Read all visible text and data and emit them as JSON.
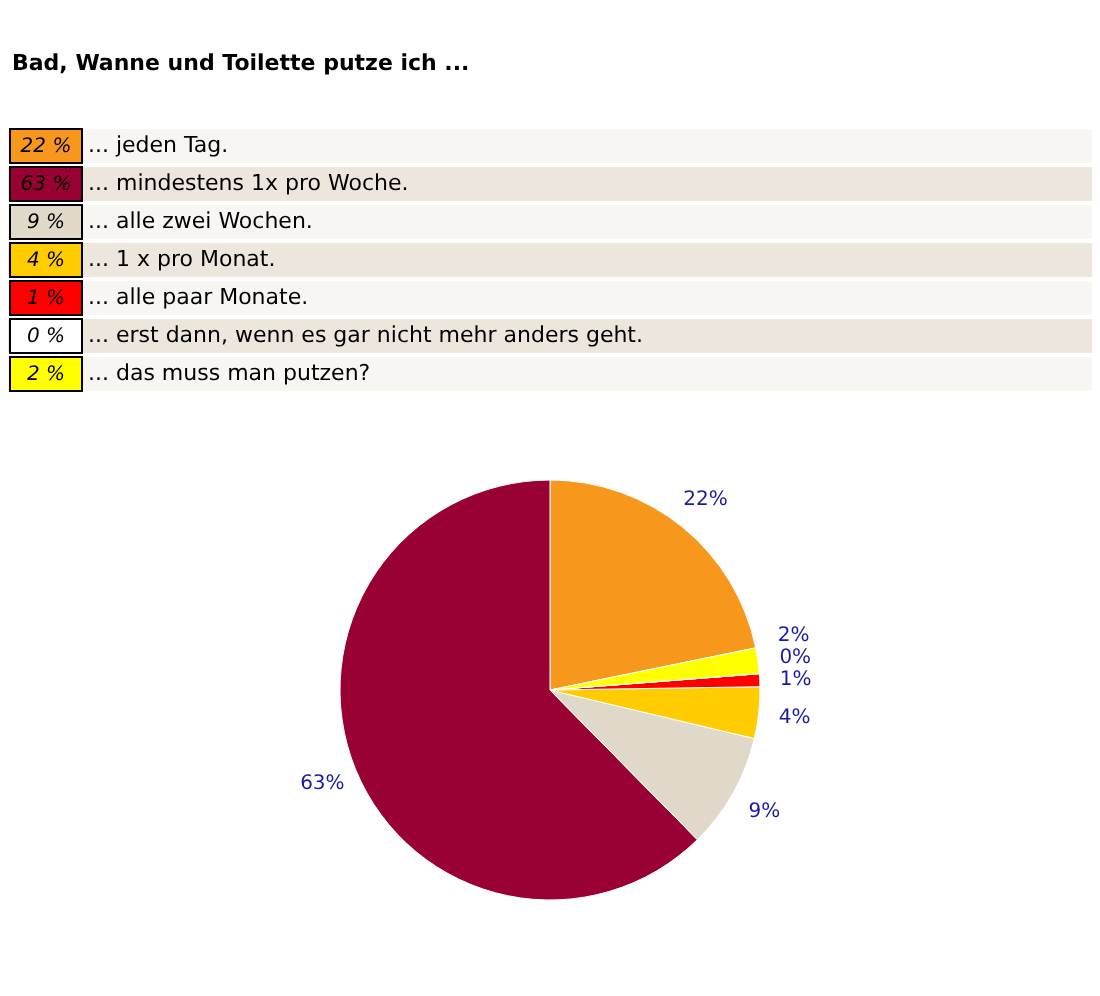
{
  "chart_data": {
    "type": "pie",
    "title": "Bad, Wanne und Toilette putze ich ...",
    "categories": [
      "... jeden Tag.",
      "... mindestens 1x pro Woche.",
      "... alle zwei Wochen.",
      "... 1 x pro Monat.",
      "... alle paar Monate.",
      "... erst dann, wenn es gar nicht mehr anders geht.",
      "... das muss man putzen?"
    ],
    "values": [
      22,
      63,
      9,
      4,
      1,
      0,
      2
    ],
    "colors": [
      "#f7981d",
      "#990033",
      "#e0d8c8",
      "#ffcc00",
      "#ff0000",
      "#ffffff",
      "#ffff00"
    ],
    "value_labels": [
      "22%",
      "63%",
      "9%",
      "4%",
      "1%",
      "0%",
      "2%"
    ],
    "legend": "top"
  }
}
